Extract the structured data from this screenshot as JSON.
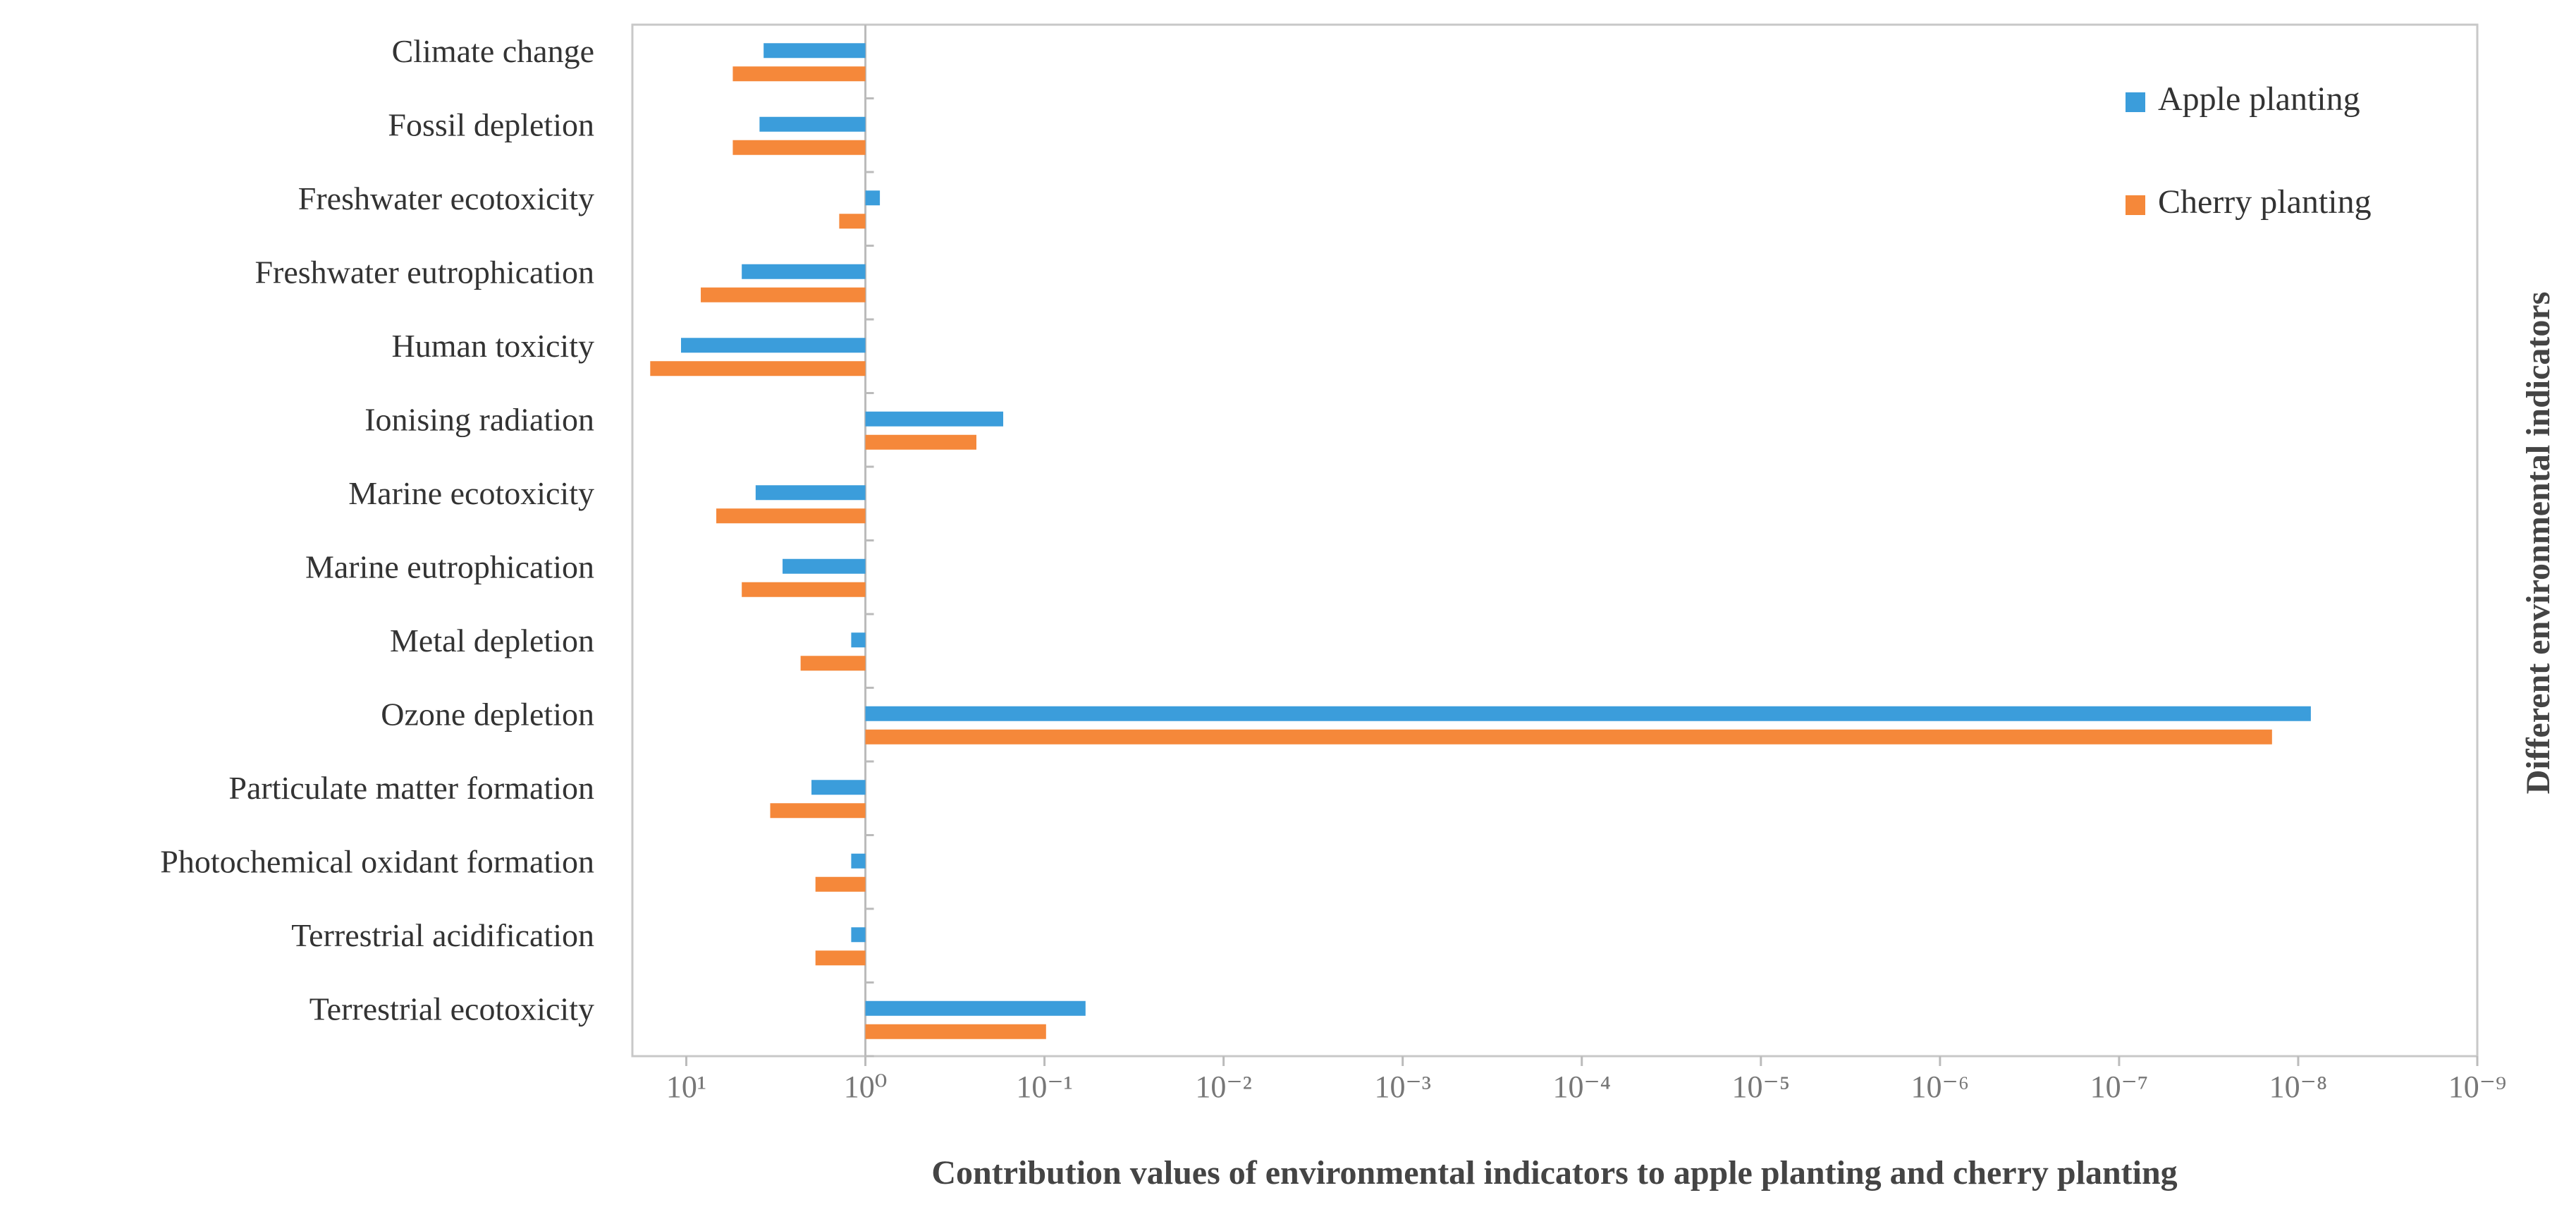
{
  "chart_data": {
    "type": "barh",
    "categories": [
      "Climate change",
      "Fossil depletion",
      "Freshwater ecotoxicity",
      "Freshwater eutrophication",
      "Human toxicity",
      "Ionising radiation",
      "Marine ecotoxicity",
      "Marine eutrophication",
      "Metal depletion",
      "Ozone depletion",
      "Particulate matter formation",
      "Photochemical oxidant formation",
      "Terrestrial acidification",
      "Terrestrial ecotoxicity"
    ],
    "series": [
      {
        "name": "Apple planting",
        "color": "#3b9ddb",
        "values": [
          3.7,
          3.9,
          0.83,
          4.9,
          10.7,
          0.17,
          4.1,
          2.9,
          1.2,
          8.5e-09,
          2.0,
          1.2,
          1.2,
          0.059
        ]
      },
      {
        "name": "Cherry planting",
        "color": "#f5883a",
        "values": [
          5.5,
          5.5,
          1.4,
          8.3,
          15.9,
          0.24,
          6.8,
          4.9,
          2.3,
          1.4e-08,
          3.4,
          1.9,
          1.9,
          0.098
        ]
      }
    ],
    "xlabel": "Contribution values of environmental indicators to apple planting and cherry planting",
    "ylabel": "Different environmental indicators",
    "xscale": "log",
    "xlim": [
      20,
      1e-09
    ],
    "xticks": [
      {
        "value": 10,
        "label": "10¹"
      },
      {
        "value": 1,
        "label": "10⁰"
      },
      {
        "value": 0.1,
        "label": "10⁻¹"
      },
      {
        "value": 0.01,
        "label": "10⁻²"
      },
      {
        "value": 0.001,
        "label": "10⁻³"
      },
      {
        "value": 0.0001,
        "label": "10⁻⁴"
      },
      {
        "value": 1e-05,
        "label": "10⁻⁵"
      },
      {
        "value": 1e-06,
        "label": "10⁻⁶"
      },
      {
        "value": 1e-07,
        "label": "10⁻⁷"
      },
      {
        "value": 1e-08,
        "label": "10⁻⁸"
      },
      {
        "value": 1e-09,
        "label": "10⁻⁹"
      }
    ],
    "legend": "upper right",
    "grid": false
  }
}
